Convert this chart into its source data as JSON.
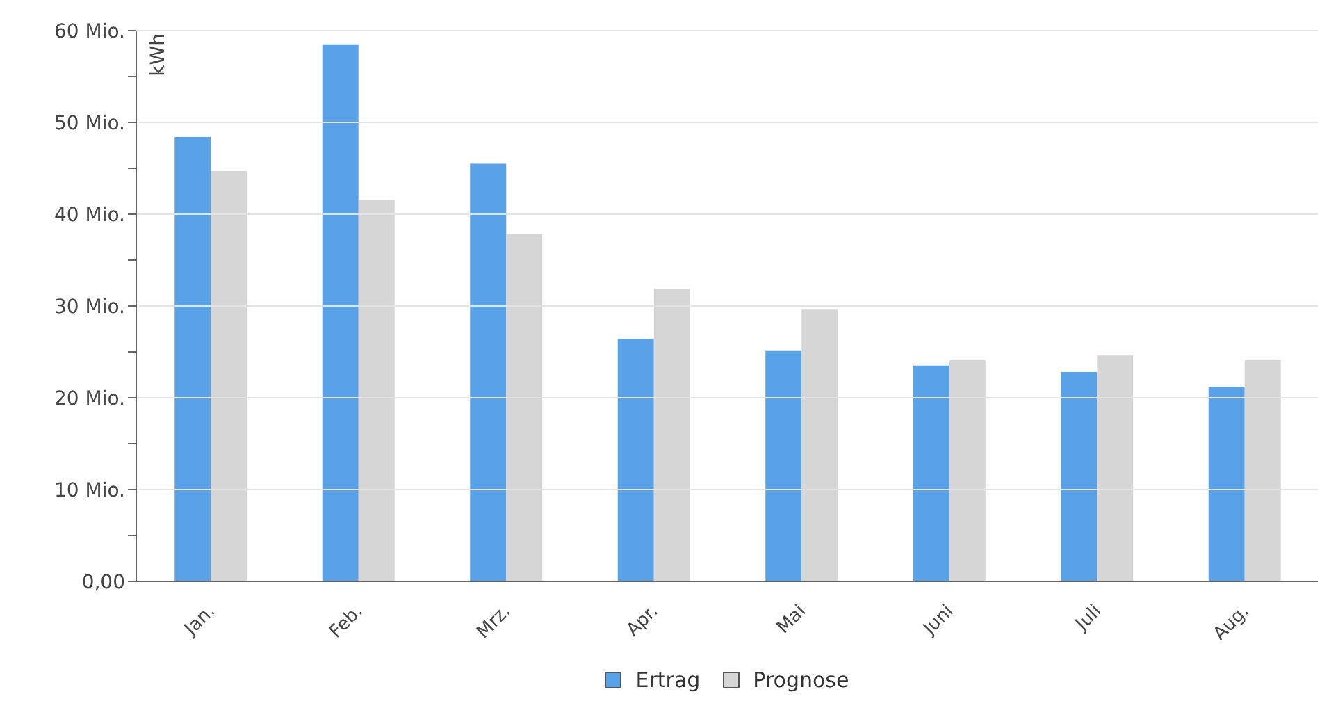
{
  "chart_data": {
    "type": "bar",
    "ylabel": "kWh",
    "categories": [
      "Jan.",
      "Feb.",
      "Mrz.",
      "Apr.",
      "Mai",
      "Juni",
      "Juli",
      "Aug."
    ],
    "series": [
      {
        "name": "Ertrag",
        "color": "#5aa2e8",
        "values": [
          48.4,
          58.5,
          45.5,
          26.4,
          25.1,
          23.5,
          22.8,
          21.2
        ]
      },
      {
        "name": "Prognose",
        "color": "#d6d6d6",
        "values": [
          44.7,
          41.6,
          37.8,
          31.9,
          29.6,
          24.1,
          24.6,
          24.1
        ]
      }
    ],
    "ylim": [
      0,
      60
    ],
    "yticks": [
      {
        "value": 0,
        "label": "0,00"
      },
      {
        "value": 5,
        "label": null
      },
      {
        "value": 10,
        "label": "10 Mio."
      },
      {
        "value": 15,
        "label": null
      },
      {
        "value": 20,
        "label": "20 Mio."
      },
      {
        "value": 25,
        "label": null
      },
      {
        "value": 30,
        "label": "30 Mio."
      },
      {
        "value": 35,
        "label": null
      },
      {
        "value": 40,
        "label": "40 Mio."
      },
      {
        "value": 45,
        "label": null
      },
      {
        "value": 50,
        "label": "50 Mio."
      },
      {
        "value": 55,
        "label": null
      },
      {
        "value": 60,
        "label": "60 Mio."
      }
    ],
    "grid": "y",
    "legend": "bottom"
  }
}
